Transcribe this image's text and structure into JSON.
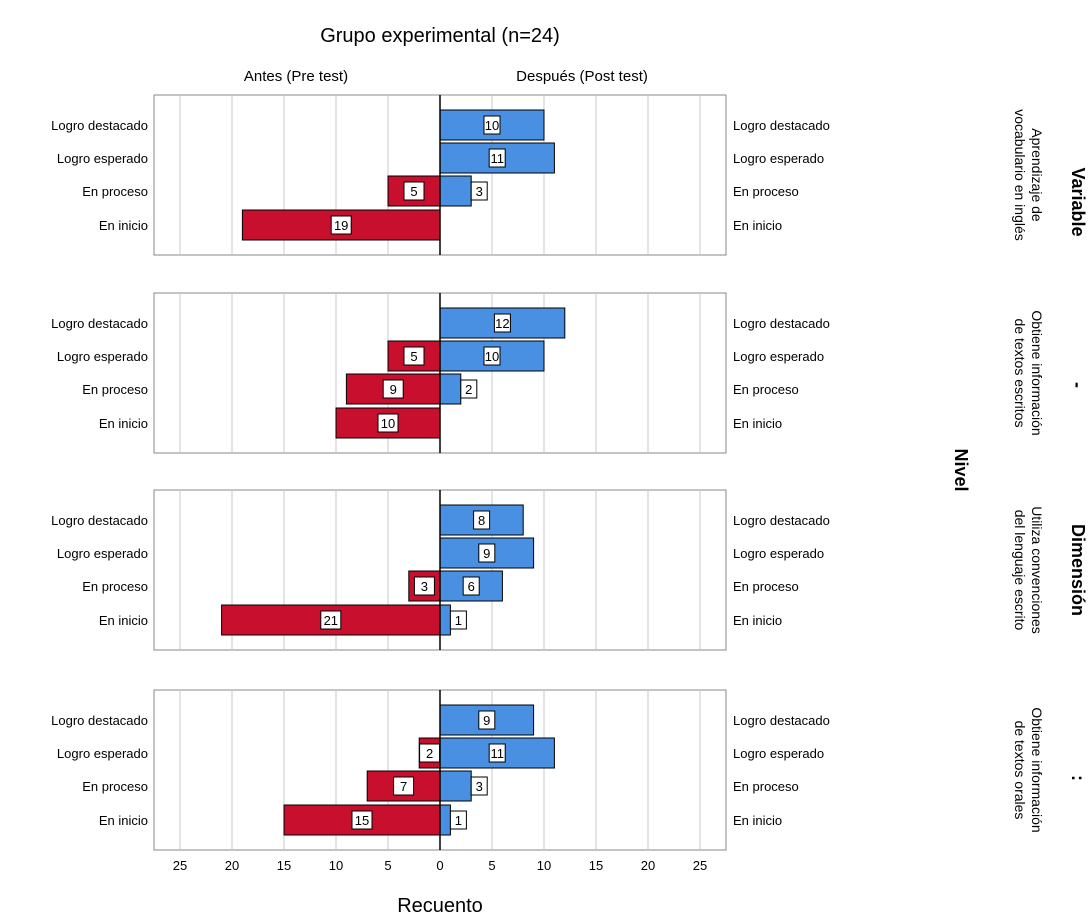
{
  "chart_data": {
    "type": "bar",
    "title": "Grupo experimental (n=24)",
    "xlabel": "Recuento",
    "left_header": "Antes (Pre test)",
    "right_header": "Después (Post test)",
    "categories": [
      "Logro destacado",
      "Logro esperado",
      "En proceso",
      "En inicio"
    ],
    "xticks": [
      "25",
      "20",
      "15",
      "10",
      "5",
      "0",
      "5",
      "10",
      "15",
      "20",
      "25"
    ],
    "xlim": [
      0,
      27.5
    ],
    "right_titles": [
      "Variable",
      "-",
      "Dimensión",
      ":"
    ],
    "middle_label": "Nivel",
    "panels": [
      {
        "label_lines": [
          "Aprendizaje de",
          "vocabulario en inglés"
        ],
        "series": [
          {
            "name": "Antes (Pre test)",
            "values": [
              0,
              0,
              5,
              19
            ]
          },
          {
            "name": "Después (Post test)",
            "values": [
              10,
              11,
              3,
              0
            ]
          }
        ]
      },
      {
        "label_lines": [
          "Obtiene información",
          "de textos escritos"
        ],
        "series": [
          {
            "name": "Antes (Pre test)",
            "values": [
              0,
              5,
              9,
              10
            ]
          },
          {
            "name": "Después (Post test)",
            "values": [
              12,
              10,
              2,
              0
            ]
          }
        ]
      },
      {
        "label_lines": [
          "Utiliza convenciones",
          "del lenguaje escrito"
        ],
        "series": [
          {
            "name": "Antes (Pre test)",
            "values": [
              0,
              0,
              3,
              21
            ]
          },
          {
            "name": "Después (Post test)",
            "values": [
              8,
              9,
              6,
              1
            ]
          }
        ]
      },
      {
        "label_lines": [
          "Obtiene información",
          "de textos orales"
        ],
        "series": [
          {
            "name": "Antes (Pre test)",
            "values": [
              0,
              2,
              7,
              15
            ]
          },
          {
            "name": "Después (Post test)",
            "values": [
              9,
              11,
              3,
              1
            ]
          }
        ]
      }
    ],
    "colors": {
      "pre": "#c8102e",
      "post": "#4a90e2",
      "grid": "#c8c8c8",
      "frame": "#888888",
      "axis": "#000000"
    }
  }
}
